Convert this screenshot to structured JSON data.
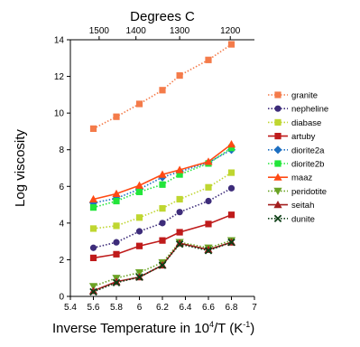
{
  "chart_data": {
    "type": "line",
    "title": "",
    "top_axis_label": "Degrees C",
    "top_ticks": [
      {
        "label": "1500",
        "x": 5.65
      },
      {
        "label": "1400",
        "x": 5.97
      },
      {
        "label": "1300",
        "x": 6.35
      },
      {
        "label": "1200",
        "x": 6.79
      }
    ],
    "xlabel": "Inverse Temperature in 10^4/T (K^-1)",
    "xlabel_main": "Inverse Temperature in 10",
    "xlabel_sup": "4",
    "xlabel_unit_open": "/T (K",
    "xlabel_unit_sup": "-1",
    "xlabel_close": ")",
    "ylabel": "Log viscosity",
    "xlim": [
      5.4,
      7
    ],
    "ylim": [
      0,
      14
    ],
    "x_ticks": [
      "5.4",
      "5.6",
      "5.8",
      "6",
      "6.2",
      "6.4",
      "6.6",
      "6.8",
      "7"
    ],
    "y_ticks": [
      "0",
      "2",
      "4",
      "6",
      "8",
      "10",
      "12",
      "14"
    ],
    "grid": false,
    "legend_position": "right",
    "x": [
      5.6,
      5.8,
      6.0,
      6.2,
      6.35,
      6.6,
      6.8
    ],
    "series": [
      {
        "name": "granite",
        "color": "#f47b4a",
        "marker": "square",
        "line": "dotted",
        "values": [
          9.15,
          9.8,
          10.5,
          11.25,
          12.05,
          12.9,
          13.75
        ]
      },
      {
        "name": "nepheline",
        "color": "#3d2c7a",
        "marker": "circle",
        "line": "dotted",
        "values": [
          2.65,
          2.95,
          3.55,
          4.0,
          4.6,
          5.2,
          5.9
        ]
      },
      {
        "name": "diabase",
        "color": "#bfd630",
        "marker": "square",
        "line": "dotted",
        "values": [
          3.7,
          3.85,
          4.3,
          4.8,
          5.3,
          5.95,
          6.75
        ]
      },
      {
        "name": "artuby",
        "color": "#bf1b1b",
        "marker": "square",
        "line": "solid",
        "values": [
          2.1,
          2.3,
          2.75,
          3.05,
          3.5,
          3.95,
          4.45
        ]
      },
      {
        "name": "diorite2a",
        "color": "#1d6fc1",
        "marker": "diamond",
        "line": "dotted",
        "values": [
          5.1,
          5.35,
          5.85,
          6.5,
          6.8,
          7.3,
          8.0
        ]
      },
      {
        "name": "diorite2b",
        "color": "#22e53a",
        "marker": "square",
        "line": "dotted",
        "values": [
          4.85,
          5.2,
          5.7,
          6.1,
          6.65,
          7.25,
          8.1
        ]
      },
      {
        "name": "maaz",
        "color": "#ff4a14",
        "marker": "triangle",
        "line": "solid",
        "values": [
          5.3,
          5.6,
          6.05,
          6.65,
          6.9,
          7.35,
          8.3
        ]
      },
      {
        "name": "peridotite",
        "color": "#6aa324",
        "marker": "triangle-down",
        "line": "dotted",
        "values": [
          0.55,
          1.0,
          1.3,
          1.85,
          2.95,
          2.65,
          3.05
        ]
      },
      {
        "name": "seitah",
        "color": "#a31f1f",
        "marker": "triangle",
        "line": "solid",
        "values": [
          0.3,
          0.8,
          1.05,
          1.7,
          2.9,
          2.55,
          2.95
        ]
      },
      {
        "name": "dunite",
        "color": "#0b3d14",
        "marker": "x",
        "line": "dotted",
        "values": [
          0.25,
          0.75,
          1.05,
          1.7,
          2.85,
          2.5,
          2.95
        ]
      }
    ]
  }
}
